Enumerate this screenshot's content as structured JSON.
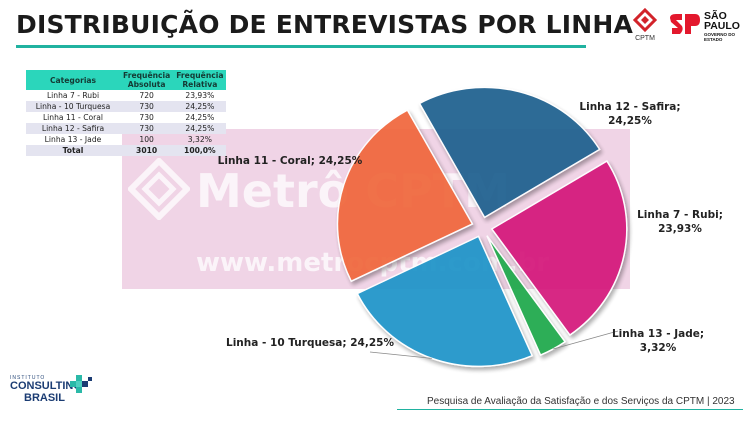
{
  "header": {
    "title": "DISTRIBUIÇÃO DE ENTREVISTAS POR LINHA",
    "cptm_label": "CPTM",
    "sp_name": "SÃO PAULO",
    "sp_sub": "GOVERNO DO ESTADO"
  },
  "watermark": {
    "brand": "Metrô CPTM",
    "url": "www.metrocptm.com.br"
  },
  "table": {
    "headers": [
      "Categorias",
      "Frequência Absoluta",
      "Frequência Relativa"
    ],
    "rows": [
      [
        "Linha 7 - Rubi",
        "720",
        "23,93%"
      ],
      [
        "Linha - 10 Turquesa",
        "730",
        "24,25%"
      ],
      [
        "Linha 11 - Coral",
        "730",
        "24,25%"
      ],
      [
        "Linha 12 - Safira",
        "730",
        "24,25%"
      ],
      [
        "Linha 13 - Jade",
        "100",
        "3,32%"
      ],
      [
        "Total",
        "3010",
        "100,0%"
      ]
    ]
  },
  "chart_data": {
    "type": "pie",
    "title": "",
    "slices": [
      {
        "label": "Linha 7 - Rubi; 23,93%",
        "value": 23.93,
        "color": "#d4157a"
      },
      {
        "label": "Linha 13 - Jade; 3,32%",
        "value": 3.32,
        "color": "#1ea84a"
      },
      {
        "label": "Linha - 10 Turquesa; 24,25%",
        "value": 24.25,
        "color": "#1d93c8"
      },
      {
        "label": "Linha 11 - Coral; 24,25%",
        "value": 24.25,
        "color": "#f0663a"
      },
      {
        "label": "Linha 12 - Safira; 24,25%",
        "value": 24.25,
        "color": "#1e5f8e"
      }
    ],
    "exploded": true,
    "data_labels": "outside"
  },
  "footer": {
    "survey": "Pesquisa de Avaliação da Satisfação e dos Serviços da CPTM | 2023",
    "logo_top": "INSTITUTO",
    "logo_main": "CONSULTING",
    "logo_sub": "BRASIL"
  }
}
